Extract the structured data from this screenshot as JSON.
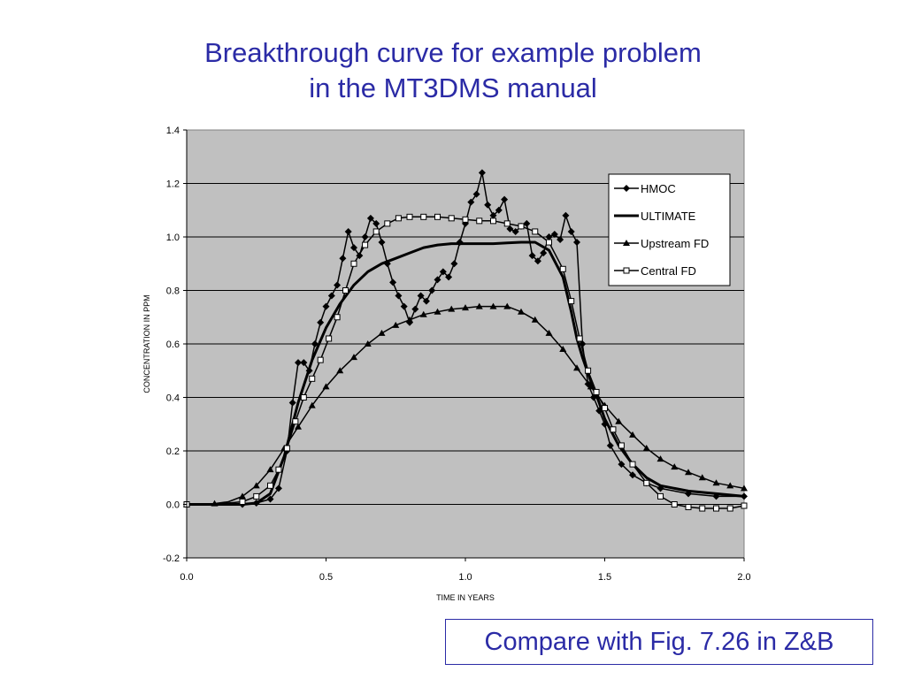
{
  "slide": {
    "title_line1": "Breakthrough curve for example problem",
    "title_line2": "in the MT3DMS manual",
    "note": "Compare with Fig. 7.26 in Z&B"
  },
  "chart_data": {
    "type": "line",
    "xlabel": "TIME IN YEARS",
    "ylabel": "CONCENTRATION IN PPM",
    "xlim": [
      0.0,
      2.0
    ],
    "ylim": [
      -0.2,
      1.4
    ],
    "x_ticks": [
      "0.0",
      "0.5",
      "1.0",
      "1.5",
      "2.0"
    ],
    "y_ticks": [
      "1.4",
      "1.2",
      "1.0",
      "0.8",
      "0.6",
      "0.4",
      "0.2",
      "0.0",
      "-0.2"
    ],
    "grid": "horizontal",
    "legend_position": "top-right",
    "plot_background": "#c0c0c0",
    "series": [
      {
        "name": "HMOC",
        "marker": "diamond",
        "x": [
          0.0,
          0.1,
          0.2,
          0.25,
          0.3,
          0.33,
          0.36,
          0.38,
          0.4,
          0.42,
          0.44,
          0.46,
          0.48,
          0.5,
          0.52,
          0.54,
          0.56,
          0.58,
          0.6,
          0.62,
          0.64,
          0.66,
          0.68,
          0.7,
          0.72,
          0.74,
          0.76,
          0.78,
          0.8,
          0.82,
          0.84,
          0.86,
          0.88,
          0.9,
          0.92,
          0.94,
          0.96,
          0.98,
          1.0,
          1.02,
          1.04,
          1.06,
          1.08,
          1.1,
          1.12,
          1.14,
          1.16,
          1.18,
          1.2,
          1.22,
          1.24,
          1.26,
          1.28,
          1.3,
          1.32,
          1.34,
          1.36,
          1.38,
          1.4,
          1.42,
          1.44,
          1.46,
          1.48,
          1.5,
          1.52,
          1.56,
          1.6,
          1.65,
          1.7,
          1.8,
          1.9,
          2.0
        ],
        "y": [
          0.0,
          0.0,
          0.0,
          0.005,
          0.02,
          0.06,
          0.2,
          0.38,
          0.53,
          0.53,
          0.5,
          0.6,
          0.68,
          0.74,
          0.78,
          0.82,
          0.92,
          1.02,
          0.96,
          0.93,
          1.0,
          1.07,
          1.05,
          0.98,
          0.9,
          0.83,
          0.78,
          0.74,
          0.68,
          0.73,
          0.78,
          0.76,
          0.8,
          0.84,
          0.87,
          0.85,
          0.9,
          0.98,
          1.05,
          1.13,
          1.16,
          1.24,
          1.12,
          1.08,
          1.1,
          1.14,
          1.03,
          1.02,
          1.04,
          1.05,
          0.93,
          0.91,
          0.94,
          1.0,
          1.01,
          0.99,
          1.08,
          1.02,
          0.98,
          0.6,
          0.45,
          0.4,
          0.35,
          0.3,
          0.22,
          0.15,
          0.11,
          0.08,
          0.06,
          0.04,
          0.03,
          0.03
        ]
      },
      {
        "name": "ULTIMATE",
        "marker": "none",
        "x": [
          0.0,
          0.1,
          0.2,
          0.25,
          0.3,
          0.35,
          0.4,
          0.45,
          0.5,
          0.55,
          0.6,
          0.65,
          0.7,
          0.75,
          0.8,
          0.85,
          0.9,
          0.95,
          1.0,
          1.05,
          1.1,
          1.15,
          1.2,
          1.25,
          1.3,
          1.35,
          1.38,
          1.4,
          1.42,
          1.45,
          1.48,
          1.5,
          1.55,
          1.6,
          1.65,
          1.7,
          1.8,
          1.9,
          2.0
        ],
        "y": [
          0.0,
          0.0,
          0.0,
          0.005,
          0.04,
          0.18,
          0.38,
          0.54,
          0.66,
          0.75,
          0.82,
          0.87,
          0.9,
          0.92,
          0.94,
          0.96,
          0.97,
          0.975,
          0.975,
          0.975,
          0.975,
          0.978,
          0.98,
          0.98,
          0.95,
          0.85,
          0.72,
          0.62,
          0.55,
          0.46,
          0.38,
          0.32,
          0.22,
          0.15,
          0.1,
          0.07,
          0.05,
          0.04,
          0.03
        ]
      },
      {
        "name": "Upstream FD",
        "marker": "triangle",
        "x": [
          0.0,
          0.05,
          0.1,
          0.15,
          0.2,
          0.25,
          0.3,
          0.35,
          0.4,
          0.45,
          0.5,
          0.55,
          0.6,
          0.65,
          0.7,
          0.75,
          0.8,
          0.85,
          0.9,
          0.95,
          1.0,
          1.05,
          1.1,
          1.15,
          1.2,
          1.25,
          1.3,
          1.35,
          1.4,
          1.45,
          1.5,
          1.55,
          1.6,
          1.65,
          1.7,
          1.75,
          1.8,
          1.85,
          1.9,
          1.95,
          2.0
        ],
        "y": [
          0.0,
          0.0,
          0.003,
          0.01,
          0.03,
          0.07,
          0.13,
          0.21,
          0.29,
          0.37,
          0.44,
          0.5,
          0.55,
          0.6,
          0.64,
          0.67,
          0.69,
          0.71,
          0.72,
          0.73,
          0.735,
          0.74,
          0.74,
          0.74,
          0.72,
          0.69,
          0.64,
          0.58,
          0.51,
          0.44,
          0.37,
          0.31,
          0.26,
          0.21,
          0.17,
          0.14,
          0.12,
          0.1,
          0.08,
          0.07,
          0.06
        ]
      },
      {
        "name": "Central FD",
        "marker": "square",
        "x": [
          0.0,
          0.1,
          0.2,
          0.25,
          0.3,
          0.33,
          0.36,
          0.39,
          0.42,
          0.45,
          0.48,
          0.51,
          0.54,
          0.57,
          0.6,
          0.64,
          0.68,
          0.72,
          0.76,
          0.8,
          0.85,
          0.9,
          0.95,
          1.0,
          1.05,
          1.1,
          1.15,
          1.2,
          1.25,
          1.3,
          1.35,
          1.38,
          1.41,
          1.44,
          1.47,
          1.5,
          1.53,
          1.56,
          1.6,
          1.65,
          1.7,
          1.75,
          1.8,
          1.85,
          1.9,
          1.95,
          2.0
        ],
        "y": [
          0.0,
          0.0,
          0.01,
          0.03,
          0.07,
          0.13,
          0.21,
          0.31,
          0.4,
          0.47,
          0.54,
          0.62,
          0.7,
          0.8,
          0.9,
          0.97,
          1.02,
          1.05,
          1.07,
          1.075,
          1.075,
          1.075,
          1.07,
          1.065,
          1.06,
          1.06,
          1.05,
          1.04,
          1.02,
          0.98,
          0.88,
          0.76,
          0.62,
          0.5,
          0.42,
          0.36,
          0.28,
          0.22,
          0.15,
          0.08,
          0.03,
          0.0,
          -0.01,
          -0.015,
          -0.015,
          -0.015,
          -0.005
        ]
      }
    ]
  }
}
